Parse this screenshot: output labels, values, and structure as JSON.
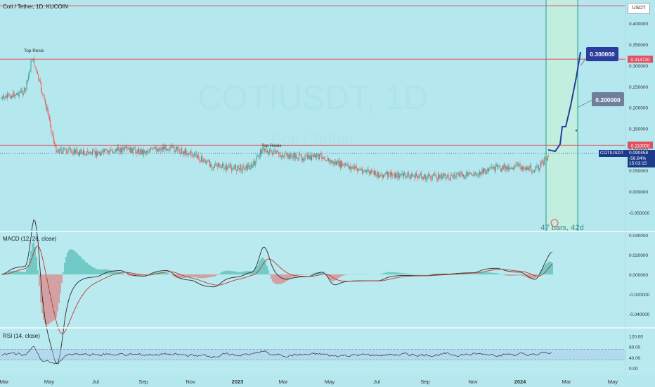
{
  "header": {
    "main": "Coti / Tether, 1D, KUCOIN",
    "macd": "MACD (12, 26, close)",
    "rsi": "RSI (14, close)"
  },
  "currency_button": "USDT",
  "watermark": {
    "symbol": "COTIUSDT, 1D",
    "name": "Coti / Tether"
  },
  "price_box": {
    "symbol": "COTIUSDT",
    "price": "0.090458",
    "change": "-56.84%",
    "countdown": "15:03:15"
  },
  "measure_label": "47 bars, 42d",
  "colors": {
    "bg": "#b5e8ee",
    "resistance": "#e05060",
    "candle_up": "#2a9d8f",
    "candle_down": "#ef5350",
    "target": "#2a3d9c",
    "macd_line": "#2962ff",
    "signal_line": "#ff6d00"
  },
  "chart_data": [
    {
      "type": "line",
      "name": "price",
      "x": [
        "2022-03-01",
        "2022-04-01",
        "2022-04-10",
        "2022-05-01",
        "2022-05-10",
        "2022-06-01",
        "2022-07-01",
        "2022-08-01",
        "2022-09-01",
        "2022-10-01",
        "2022-11-01",
        "2022-12-01",
        "2023-01-01",
        "2023-01-20",
        "2023-02-01",
        "2023-03-01",
        "2023-04-01",
        "2023-04-20",
        "2023-05-01",
        "2023-06-01",
        "2023-07-01",
        "2023-08-01",
        "2023-09-01",
        "2023-10-01",
        "2023-11-01",
        "2023-12-01",
        "2024-01-01",
        "2024-01-20",
        "2024-02-01",
        "2024-02-08"
      ],
      "y": [
        0.22,
        0.24,
        0.32,
        0.18,
        0.1,
        0.095,
        0.09,
        0.1,
        0.095,
        0.105,
        0.09,
        0.06,
        0.055,
        0.06,
        0.1,
        0.085,
        0.08,
        0.085,
        0.07,
        0.055,
        0.04,
        0.038,
        0.035,
        0.036,
        0.04,
        0.055,
        0.06,
        0.05,
        0.07,
        0.09
      ],
      "horizontal_lines": [
        0.442,
        0.3147,
        0.11
      ],
      "level_labels": [
        "0.314720",
        "0.110000"
      ],
      "annotations": [
        "Top Resis",
        "Top Resis"
      ],
      "targets": [
        "0.200000",
        "0.300000"
      ],
      "yticks": [
        "0.400000",
        "0.350000",
        "0.300000",
        "0.250000",
        "0.200000",
        "0.150000",
        "0.100000",
        "0.050000",
        "0.000000",
        "-0.050000"
      ],
      "xticks": [
        "Mar",
        "May",
        "Jul",
        "Sep",
        "Nov",
        "2023",
        "Mar",
        "May",
        "Jul",
        "Sep",
        "Nov",
        "2024",
        "Mar",
        "May"
      ]
    },
    {
      "type": "line",
      "name": "MACD (12, 26, close)",
      "yticks": [
        "0.040000",
        "0.020000",
        "0.000000",
        "-0.020000",
        "-0.040000"
      ],
      "ylim": [
        -0.045,
        0.04
      ]
    },
    {
      "type": "line",
      "name": "RSI (14, close)",
      "yticks": [
        "120.00",
        "80.00",
        "40.00",
        "0.00"
      ],
      "bands": [
        70,
        30
      ],
      "ylim": [
        0,
        120
      ]
    }
  ]
}
